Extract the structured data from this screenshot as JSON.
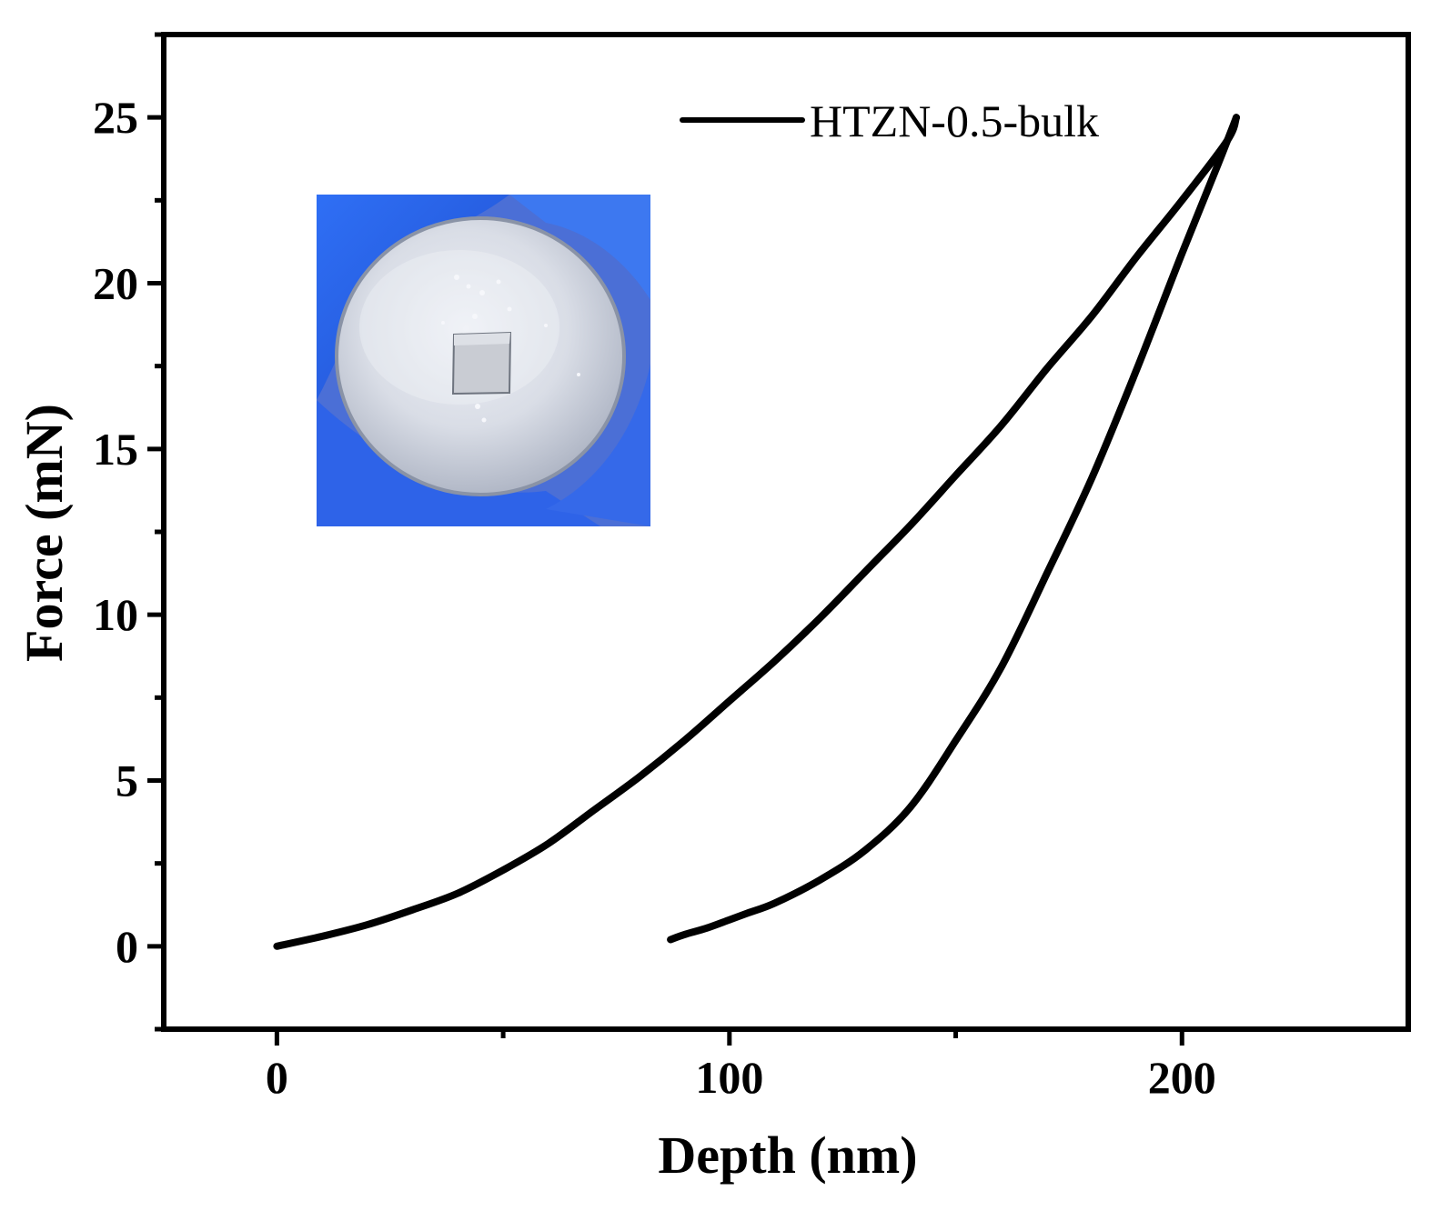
{
  "chart_data": {
    "type": "line",
    "title": "",
    "xlabel": "Depth (nm)",
    "ylabel": "Force (mN)",
    "xlim": [
      -25,
      250
    ],
    "ylim": [
      -2.5,
      27.5
    ],
    "x_major_ticks": [
      0,
      100,
      200
    ],
    "x_minor_ticks": [
      50,
      150
    ],
    "y_major_ticks": [
      0,
      5,
      10,
      15,
      20,
      25
    ],
    "y_minor_ticks": [
      -2.5,
      2.5,
      7.5,
      12.5,
      17.5,
      22.5,
      27.5
    ],
    "x_tick_labels": [
      "0",
      "100",
      "200"
    ],
    "y_tick_labels": [
      "0",
      "5",
      "10",
      "15",
      "20",
      "25"
    ],
    "grid": false,
    "legend": {
      "position": "top-right",
      "entries": [
        "HTZN-0.5-bulk"
      ]
    },
    "line_color": "#000000",
    "series": [
      {
        "name": "HTZN-0.5-bulk",
        "segment": "loading",
        "x": [
          0,
          10,
          20,
          30,
          40,
          50,
          60,
          70,
          80,
          90,
          100,
          110,
          120,
          130,
          140,
          150,
          160,
          170,
          180,
          190,
          200,
          210,
          212
        ],
        "y": [
          0,
          0.3,
          0.65,
          1.1,
          1.6,
          2.3,
          3.1,
          4.1,
          5.1,
          6.2,
          7.4,
          8.6,
          9.9,
          11.3,
          12.7,
          14.2,
          15.7,
          17.4,
          19.0,
          20.8,
          22.5,
          24.3,
          25.0
        ]
      },
      {
        "name": "HTZN-0.5-bulk",
        "segment": "unloading",
        "x": [
          212,
          208,
          200,
          190,
          180,
          170,
          160,
          150,
          140,
          130,
          120,
          110,
          104,
          100,
          95,
          90,
          87
        ],
        "y": [
          25.0,
          23.6,
          20.9,
          17.4,
          14.1,
          11.2,
          8.4,
          6.2,
          4.2,
          2.9,
          2.0,
          1.3,
          1.0,
          0.8,
          0.55,
          0.35,
          0.2
        ]
      }
    ]
  },
  "inset": {
    "image_name": "sample-photo",
    "caption": ""
  }
}
